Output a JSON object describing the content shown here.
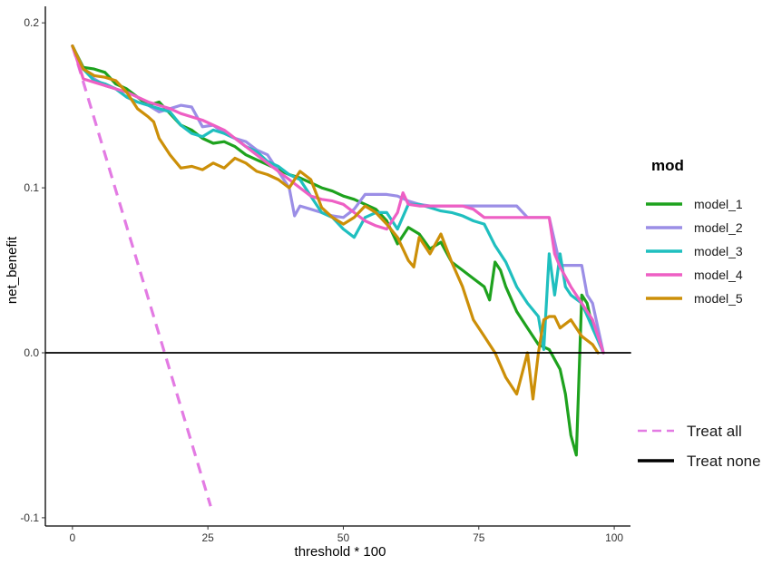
{
  "chart_data": {
    "type": "line",
    "xlabel": "threshold * 100",
    "ylabel": "net_benefit",
    "xlim": [
      -5,
      103
    ],
    "ylim": [
      -0.105,
      0.21
    ],
    "x_ticks": [
      0,
      25,
      50,
      75,
      100
    ],
    "y_ticks": [
      -0.1,
      0.0,
      0.1,
      0.2
    ],
    "y_tick_labels": [
      "-0.1",
      "0.0",
      "0.1",
      "0.2"
    ],
    "grid": false,
    "legend_title": "mod",
    "legend_position": "right",
    "series": [
      {
        "name": "model_1",
        "color": "#1ea21e",
        "x": [
          0,
          2,
          4,
          6,
          8,
          10,
          12,
          14,
          16,
          18,
          20,
          22,
          24,
          26,
          28,
          30,
          32,
          34,
          36,
          38,
          40,
          42,
          44,
          46,
          48,
          50,
          52,
          54,
          56,
          58,
          60,
          62,
          64,
          66,
          68,
          70,
          72,
          74,
          76,
          77,
          78,
          79,
          80,
          82,
          84,
          86,
          88,
          90,
          91,
          92,
          93,
          94,
          95,
          96,
          97,
          98
        ],
        "y": [
          0.186,
          0.173,
          0.172,
          0.17,
          0.163,
          0.16,
          0.155,
          0.15,
          0.152,
          0.145,
          0.138,
          0.135,
          0.13,
          0.127,
          0.128,
          0.125,
          0.12,
          0.117,
          0.114,
          0.111,
          0.108,
          0.106,
          0.103,
          0.1,
          0.098,
          0.095,
          0.093,
          0.09,
          0.087,
          0.08,
          0.066,
          0.076,
          0.072,
          0.063,
          0.067,
          0.055,
          0.05,
          0.045,
          0.04,
          0.032,
          0.055,
          0.05,
          0.04,
          0.025,
          0.015,
          0.005,
          0.002,
          -0.01,
          -0.025,
          -0.05,
          -0.062,
          0.035,
          0.03,
          0.015,
          0.008,
          0.0
        ],
        "dashed": false
      },
      {
        "name": "model_2",
        "color": "#9b8ee6",
        "x": [
          0,
          2,
          4,
          6,
          8,
          10,
          12,
          14,
          16,
          18,
          20,
          22,
          24,
          26,
          28,
          30,
          32,
          34,
          36,
          38,
          40,
          41,
          42,
          44,
          46,
          48,
          50,
          52,
          54,
          56,
          58,
          60,
          62,
          64,
          66,
          68,
          70,
          72,
          74,
          76,
          78,
          80,
          82,
          84,
          86,
          88,
          90,
          92,
          94,
          95,
          96,
          98
        ],
        "y": [
          0.186,
          0.172,
          0.166,
          0.162,
          0.16,
          0.155,
          0.152,
          0.15,
          0.146,
          0.148,
          0.15,
          0.149,
          0.137,
          0.138,
          0.133,
          0.13,
          0.128,
          0.123,
          0.12,
          0.11,
          0.1,
          0.083,
          0.089,
          0.087,
          0.085,
          0.083,
          0.082,
          0.087,
          0.096,
          0.096,
          0.096,
          0.095,
          0.092,
          0.09,
          0.089,
          0.089,
          0.089,
          0.089,
          0.089,
          0.089,
          0.089,
          0.089,
          0.089,
          0.082,
          0.082,
          0.082,
          0.053,
          0.053,
          0.053,
          0.035,
          0.03,
          0.0
        ],
        "dashed": false
      },
      {
        "name": "model_3",
        "color": "#1fbfbf",
        "x": [
          0,
          2,
          4,
          6,
          8,
          10,
          12,
          14,
          16,
          18,
          20,
          22,
          24,
          26,
          28,
          30,
          32,
          34,
          36,
          38,
          40,
          42,
          44,
          46,
          48,
          50,
          52,
          54,
          56,
          58,
          60,
          62,
          64,
          66,
          68,
          70,
          72,
          74,
          76,
          78,
          80,
          82,
          84,
          86,
          87,
          88,
          89,
          90,
          91,
          92,
          94,
          96,
          98
        ],
        "y": [
          0.186,
          0.172,
          0.165,
          0.163,
          0.16,
          0.155,
          0.152,
          0.15,
          0.148,
          0.146,
          0.138,
          0.133,
          0.131,
          0.135,
          0.133,
          0.13,
          0.125,
          0.122,
          0.116,
          0.113,
          0.108,
          0.105,
          0.095,
          0.085,
          0.082,
          0.075,
          0.07,
          0.082,
          0.085,
          0.085,
          0.075,
          0.09,
          0.09,
          0.088,
          0.086,
          0.085,
          0.083,
          0.08,
          0.078,
          0.065,
          0.055,
          0.04,
          0.03,
          0.022,
          0.002,
          0.06,
          0.035,
          0.06,
          0.04,
          0.035,
          0.03,
          0.015,
          0.0
        ],
        "dashed": false
      },
      {
        "name": "model_4",
        "color": "#ee5fc4",
        "x": [
          0,
          2,
          4,
          6,
          8,
          10,
          12,
          14,
          16,
          18,
          20,
          22,
          24,
          26,
          28,
          30,
          32,
          34,
          36,
          38,
          40,
          42,
          44,
          46,
          48,
          50,
          52,
          54,
          56,
          58,
          60,
          61,
          62,
          64,
          66,
          68,
          70,
          72,
          74,
          76,
          78,
          80,
          82,
          84,
          86,
          88,
          89,
          90,
          92,
          94,
          96,
          98
        ],
        "y": [
          0.186,
          0.166,
          0.164,
          0.162,
          0.16,
          0.158,
          0.155,
          0.152,
          0.15,
          0.148,
          0.145,
          0.143,
          0.141,
          0.138,
          0.135,
          0.13,
          0.125,
          0.12,
          0.115,
          0.11,
          0.105,
          0.1,
          0.095,
          0.093,
          0.092,
          0.09,
          0.085,
          0.08,
          0.077,
          0.075,
          0.085,
          0.097,
          0.09,
          0.089,
          0.089,
          0.089,
          0.089,
          0.089,
          0.087,
          0.082,
          0.082,
          0.082,
          0.082,
          0.082,
          0.082,
          0.082,
          0.06,
          0.052,
          0.04,
          0.03,
          0.02,
          0.0
        ],
        "dashed": false
      },
      {
        "name": "model_5",
        "color": "#cc8f08",
        "x": [
          0,
          2,
          4,
          6,
          8,
          10,
          12,
          14,
          15,
          16,
          17,
          18,
          20,
          22,
          24,
          26,
          28,
          30,
          32,
          34,
          36,
          38,
          40,
          42,
          44,
          46,
          48,
          50,
          52,
          54,
          56,
          58,
          60,
          62,
          63,
          64,
          66,
          68,
          70,
          72,
          74,
          76,
          78,
          80,
          82,
          84,
          85,
          86,
          87,
          88,
          89,
          90,
          92,
          93,
          94,
          96,
          97
        ],
        "y": [
          0.186,
          0.172,
          0.168,
          0.167,
          0.165,
          0.158,
          0.148,
          0.143,
          0.14,
          0.13,
          0.125,
          0.12,
          0.112,
          0.113,
          0.111,
          0.115,
          0.112,
          0.118,
          0.115,
          0.11,
          0.108,
          0.105,
          0.1,
          0.11,
          0.105,
          0.088,
          0.082,
          0.078,
          0.082,
          0.089,
          0.085,
          0.078,
          0.07,
          0.056,
          0.052,
          0.07,
          0.06,
          0.072,
          0.055,
          0.04,
          0.02,
          0.01,
          0.0,
          -0.015,
          -0.025,
          0.0,
          -0.028,
          0.0,
          0.02,
          0.022,
          0.022,
          0.015,
          0.02,
          0.015,
          0.01,
          0.005,
          0.0
        ],
        "dashed": false
      },
      {
        "name": "Treat all",
        "color": "#e37be3",
        "x": [
          0,
          25.5
        ],
        "y": [
          0.186,
          -0.093
        ],
        "dashed": true
      },
      {
        "name": "Treat none",
        "color": "#000000",
        "x": [
          -5,
          103
        ],
        "y": [
          0,
          0
        ],
        "dashed": false
      }
    ]
  }
}
